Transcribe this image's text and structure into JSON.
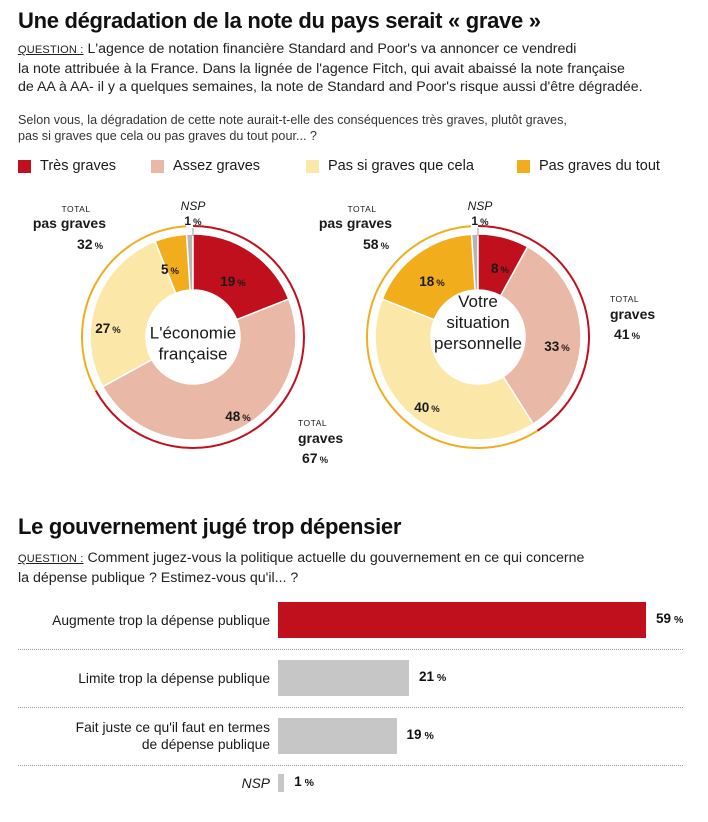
{
  "section1": {
    "title": "Une dégradation de la note du pays serait « grave »",
    "question_label": "QUESTION :",
    "question_lines": [
      " L'agence de notation financière Standard and Poor's va annoncer ce vendredi",
      "la note attribuée à la France. Dans la lignée de l'agence Fitch, qui avait abaissé la note française",
      "de AA à AA- il y a quelques semaines, la note de Standard and Poor's risque aussi d'être dégradée."
    ],
    "subquestion_lines": [
      "Selon vous, la dégradation de cette note aurait-t-elle des conséquences très graves, plutôt graves,",
      "pas si graves que cela ou pas graves du tout pour... ?"
    ]
  },
  "legend": [
    {
      "label": "Très graves",
      "color": "#c0101e"
    },
    {
      "label": "Assez graves",
      "color": "#e9b8a6"
    },
    {
      "label": "Pas si graves que cela",
      "color": "#fbe8a8"
    },
    {
      "label": "Pas graves du tout",
      "color": "#f2ad1c"
    }
  ],
  "colors": {
    "nsp": "#b5b5b5",
    "bar_highlight": "#c0101e",
    "bar_default": "#c6c6c6",
    "total_grave_ring": "#c0101e",
    "total_pas_grave_ring": "#f2ad1c"
  },
  "labels": {
    "total": "TOTAL",
    "graves": "graves",
    "pas_graves": "pas graves",
    "nsp": "NSP",
    "pct": "%"
  },
  "chart_data": [
    {
      "type": "pie",
      "center_label_lines": [
        "L'économie",
        "française"
      ],
      "categories": [
        "NSP",
        "Très graves",
        "Assez graves",
        "Pas si graves que cela",
        "Pas graves du tout"
      ],
      "values": [
        1,
        19,
        48,
        27,
        5
      ],
      "totals": {
        "graves": 67,
        "pas_graves": 32
      }
    },
    {
      "type": "pie",
      "center_label_lines": [
        "Votre",
        "situation",
        "personnelle"
      ],
      "categories": [
        "NSP",
        "Très graves",
        "Assez graves",
        "Pas si graves que cela",
        "Pas graves du tout"
      ],
      "values": [
        1,
        8,
        33,
        40,
        18
      ],
      "totals": {
        "graves": 41,
        "pas_graves": 58
      }
    },
    {
      "type": "bar",
      "title": "Le gouvernement jugé trop dépensier",
      "question_label": "QUESTION :",
      "question_lines": [
        " Comment jugez-vous la politique actuelle du gouvernement en ce qui concerne",
        "la dépense publique ? Estimez-vous qu'il... ?"
      ],
      "categories": [
        [
          "Augmente trop la dépense publique"
        ],
        [
          "Limite trop la dépense publique"
        ],
        [
          "Fait juste ce qu'il faut en termes",
          "de dépense publique"
        ],
        [
          "NSP"
        ]
      ],
      "values": [
        59,
        21,
        19,
        1
      ],
      "xlim": [
        0,
        59
      ]
    }
  ]
}
